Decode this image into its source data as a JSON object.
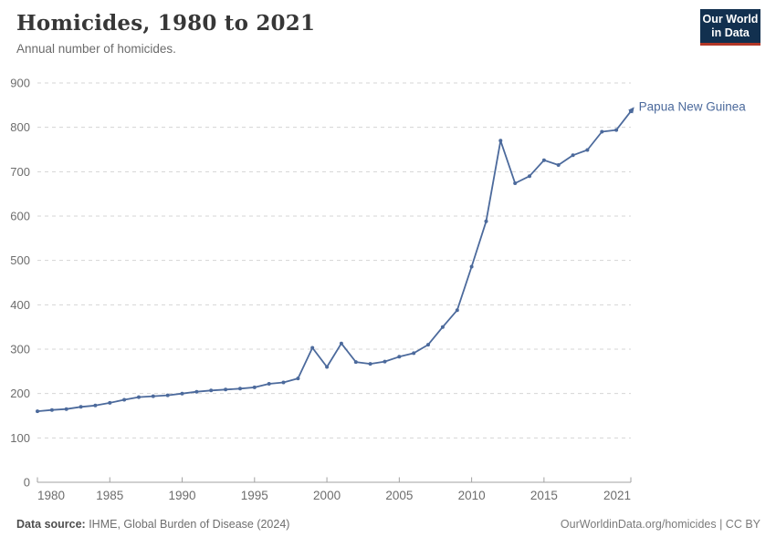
{
  "header": {
    "title": "Homicides, 1980 to 2021",
    "subtitle": "Annual number of homicides."
  },
  "logo": {
    "line1": "Our World",
    "line2": "in Data",
    "background_color": "#12304f",
    "accent_color": "#b23727"
  },
  "chart_data": {
    "type": "line",
    "title": "Homicides, 1980 to 2021",
    "xlabel": "",
    "ylabel": "",
    "xlim": [
      1980,
      2021
    ],
    "ylim": [
      0,
      900
    ],
    "grid": "horizontal-dashed",
    "legend_position": "end-of-line-label",
    "xticks": [
      1980,
      1985,
      1990,
      1995,
      2000,
      2005,
      2010,
      2015,
      2021
    ],
    "yticks": [
      0,
      100,
      200,
      300,
      400,
      500,
      600,
      700,
      800,
      900
    ],
    "series": [
      {
        "name": "Papua New Guinea",
        "color": "#4c6a9c",
        "x": [
          1980,
          1981,
          1982,
          1983,
          1984,
          1985,
          1986,
          1987,
          1988,
          1989,
          1990,
          1991,
          1992,
          1993,
          1994,
          1995,
          1996,
          1997,
          1998,
          1999,
          2000,
          2001,
          2002,
          2003,
          2004,
          2005,
          2006,
          2007,
          2008,
          2009,
          2010,
          2011,
          2012,
          2013,
          2014,
          2015,
          2016,
          2017,
          2018,
          2019,
          2020,
          2021
        ],
        "values": [
          160,
          163,
          165,
          170,
          173,
          179,
          186,
          192,
          194,
          196,
          200,
          204,
          207,
          209,
          211,
          214,
          222,
          225,
          234,
          303,
          260,
          313,
          271,
          267,
          272,
          283,
          291,
          310,
          350,
          388,
          486,
          588,
          770,
          674,
          690,
          726,
          715,
          737,
          749,
          790,
          794,
          836
        ]
      }
    ]
  },
  "footer": {
    "source_label": "Data source:",
    "source_text": " IHME, Global Burden of Disease (2024)",
    "credit": "OurWorldinData.org/homicides | CC BY"
  },
  "colors": {
    "line": "#4c6a9c",
    "gridline": "#d5d5d5",
    "axis": "#a2a2a2",
    "tick_label": "#6d6d6d",
    "title": "#373737",
    "subtitle": "#6b6b6b"
  }
}
